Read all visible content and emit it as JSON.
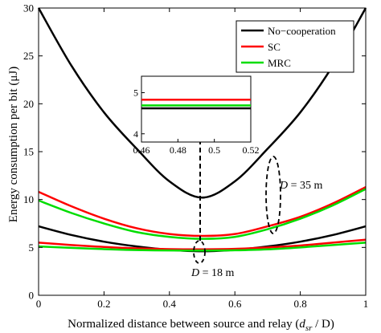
{
  "chart_data": {
    "type": "line",
    "xlabel": "Normalized distance between source and relay (",
    "xlabel_var": "d",
    "xlabel_sub": "sr",
    "xlabel_tail": " / D)",
    "ylabel": "Energy consumption per bit (μJ)",
    "xlim": [
      0,
      1
    ],
    "ylim": [
      0,
      30
    ],
    "xticks": [
      "0",
      "0.2",
      "0.4",
      "0.6",
      "0.8",
      "1"
    ],
    "yticks": [
      "0",
      "5",
      "10",
      "15",
      "20",
      "25",
      "30"
    ],
    "grid": false,
    "legend_position": "top-right",
    "legend": [
      {
        "name": "No−cooperation",
        "color": "#000000"
      },
      {
        "name": "SC",
        "color": "#ff0000"
      },
      {
        "name": "MRC",
        "color": "#00dd00"
      }
    ],
    "series": [
      {
        "name": "No−cooperation",
        "group": "D = 35 m",
        "color": "#000000",
        "x": [
          0,
          0.1,
          0.2,
          0.3,
          0.4,
          0.5,
          0.6,
          0.7,
          0.8,
          0.9,
          1.0
        ],
        "y": [
          30.0,
          24.0,
          19.1,
          15.3,
          11.9,
          10.2,
          11.9,
          15.3,
          19.1,
          24.0,
          30.0
        ]
      },
      {
        "name": "SC",
        "group": "D = 35 m",
        "color": "#ff0000",
        "x": [
          0,
          0.1,
          0.2,
          0.3,
          0.4,
          0.5,
          0.6,
          0.7,
          0.8,
          0.9,
          1.0
        ],
        "y": [
          10.8,
          9.3,
          8.0,
          7.0,
          6.4,
          6.2,
          6.4,
          7.2,
          8.2,
          9.6,
          11.3
        ]
      },
      {
        "name": "MRC",
        "group": "D = 35 m",
        "color": "#00dd00",
        "x": [
          0,
          0.1,
          0.2,
          0.3,
          0.4,
          0.5,
          0.6,
          0.7,
          0.8,
          0.9,
          1.0
        ],
        "y": [
          9.9,
          8.6,
          7.5,
          6.6,
          6.1,
          5.9,
          6.1,
          6.9,
          8.0,
          9.4,
          11.1
        ]
      },
      {
        "name": "No−cooperation",
        "group": "D = 18 m",
        "color": "#000000",
        "x": [
          0,
          0.1,
          0.2,
          0.3,
          0.4,
          0.5,
          0.6,
          0.7,
          0.8,
          0.9,
          1.0
        ],
        "y": [
          7.2,
          6.3,
          5.6,
          5.1,
          4.75,
          4.6,
          4.75,
          5.1,
          5.6,
          6.3,
          7.2
        ]
      },
      {
        "name": "SC",
        "group": "D = 18 m",
        "color": "#ff0000",
        "x": [
          0,
          0.1,
          0.2,
          0.3,
          0.4,
          0.5,
          0.6,
          0.7,
          0.8,
          0.9,
          1.0
        ],
        "y": [
          5.5,
          5.25,
          5.05,
          4.9,
          4.82,
          4.8,
          4.85,
          5.0,
          5.2,
          5.5,
          5.8
        ]
      },
      {
        "name": "MRC",
        "group": "D = 18 m",
        "color": "#00dd00",
        "x": [
          0,
          0.1,
          0.2,
          0.3,
          0.4,
          0.5,
          0.6,
          0.7,
          0.8,
          0.9,
          1.0
        ],
        "y": [
          5.1,
          4.95,
          4.82,
          4.72,
          4.68,
          4.67,
          4.7,
          4.8,
          5.0,
          5.25,
          5.5
        ]
      }
    ],
    "annotations": [
      {
        "italic": "D",
        "text": " = 35 m"
      },
      {
        "italic": "D",
        "text": " = 18 m"
      }
    ],
    "inset": {
      "xlim": [
        0.46,
        0.52
      ],
      "ylim": [
        3.8,
        5.4
      ],
      "xticks": [
        "0.46",
        "0.48",
        "0.5",
        "0.52"
      ],
      "yticks": [
        "4",
        "5"
      ],
      "series": [
        {
          "name": "SC",
          "color": "#ff0000",
          "x": [
            0.46,
            0.52
          ],
          "y": [
            4.83,
            4.83
          ]
        },
        {
          "name": "MRC",
          "color": "#00dd00",
          "x": [
            0.46,
            0.52
          ],
          "y": [
            4.69,
            4.69
          ]
        },
        {
          "name": "No−cooperation",
          "color": "#000000",
          "x": [
            0.46,
            0.52
          ],
          "y": [
            4.62,
            4.62
          ]
        }
      ]
    }
  }
}
